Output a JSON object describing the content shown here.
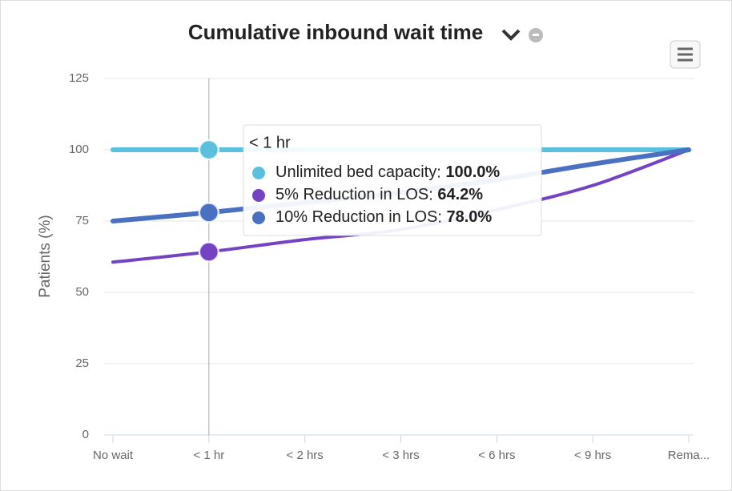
{
  "chart_data": {
    "type": "line",
    "title": "Cumulative inbound wait time",
    "y_label": "Patients (%)",
    "categories": [
      "No wait",
      "< 1 hr",
      "< 2 hrs",
      "< 3 hrs",
      "< 6 hrs",
      "< 9 hrs",
      "Rema..."
    ],
    "series": [
      {
        "name": "Unlimited bed capacity",
        "color": "#5bc0de",
        "values": [
          100,
          100,
          100,
          100,
          100,
          100,
          100
        ],
        "value_labels": [
          null,
          "100.0%",
          null,
          null,
          null,
          null,
          null
        ]
      },
      {
        "name": "5% Reduction in LOS",
        "color": "#7443c4",
        "values": [
          60.6,
          64.2,
          68.5,
          72,
          79,
          87.5,
          100
        ],
        "value_labels": [
          null,
          "64.2%",
          null,
          null,
          null,
          null,
          null
        ]
      },
      {
        "name": "10% Reduction in LOS",
        "color": "#4a70c2",
        "values": [
          75,
          78,
          81.5,
          85,
          89.5,
          95,
          100
        ],
        "value_labels": [
          null,
          "78.0%",
          null,
          null,
          null,
          null,
          null
        ]
      }
    ],
    "ylim": [
      0,
      125
    ],
    "yticks": [
      0,
      25,
      50,
      75,
      100,
      125
    ],
    "grid": true
  }
}
